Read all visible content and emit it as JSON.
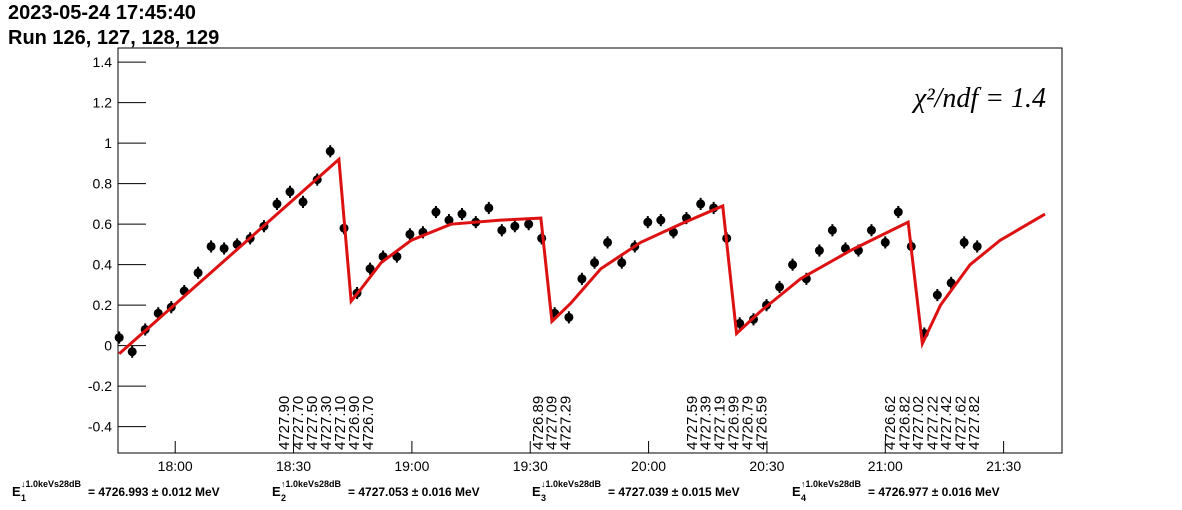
{
  "header": {
    "date": "2023-05-24 17:45:40",
    "runs": "Run 126, 127, 128, 129"
  },
  "chart_data": {
    "type": "scatter",
    "annotation": "χ²/ndf = 1.4",
    "xlim": [
      1065.5,
      1304.8
    ],
    "xticks": [
      {
        "value": 1080,
        "label": "18:00"
      },
      {
        "value": 1110,
        "label": "18:30"
      },
      {
        "value": 1140,
        "label": "19:00"
      },
      {
        "value": 1170,
        "label": "19:30"
      },
      {
        "value": 1200,
        "label": "20:00"
      },
      {
        "value": 1230,
        "label": "20:30"
      },
      {
        "value": 1260,
        "label": "21:00"
      },
      {
        "value": 1290,
        "label": "21:30"
      }
    ],
    "ylim": [
      -0.53,
      1.47
    ],
    "yticks": [
      -0.4,
      -0.2,
      0,
      0.2,
      0.4,
      0.6,
      0.8,
      1,
      1.2,
      1.4
    ],
    "series": [
      {
        "color": "#000000",
        "x": [
          1065.8,
          1069.1,
          1072.4,
          1075.7,
          1079.0,
          1082.3,
          1085.8,
          1089.1,
          1092.4,
          1095.7,
          1099.0,
          1102.5,
          1105.8,
          1109.1,
          1112.4,
          1116.0,
          1119.3,
          1122.8,
          1126.1,
          1129.4,
          1132.7,
          1136.2,
          1139.5,
          1142.8,
          1146.1,
          1149.4,
          1152.7,
          1156.2,
          1159.5,
          1162.8,
          1166.1,
          1169.6,
          1172.9,
          1176.2,
          1179.8,
          1183.1,
          1186.3,
          1189.6,
          1193.2,
          1196.5,
          1199.8,
          1203.1,
          1206.3,
          1209.6,
          1213.2,
          1216.5,
          1219.8,
          1223.1,
          1226.6,
          1229.9,
          1233.2,
          1236.5,
          1240.0,
          1243.3,
          1246.6,
          1249.9,
          1253.2,
          1256.5,
          1260.0,
          1263.3,
          1266.6,
          1269.9,
          1273.2,
          1276.7,
          1280.0,
          1283.3
        ],
        "values": [
          0.04,
          -0.03,
          0.08,
          0.16,
          0.19,
          0.27,
          0.36,
          0.49,
          0.48,
          0.5,
          0.53,
          0.59,
          0.7,
          0.76,
          0.71,
          0.82,
          0.96,
          0.58,
          0.26,
          0.38,
          0.44,
          0.44,
          0.55,
          0.56,
          0.66,
          0.62,
          0.65,
          0.61,
          0.68,
          0.57,
          0.59,
          0.6,
          0.53,
          0.16,
          0.14,
          0.33,
          0.41,
          0.51,
          0.41,
          0.49,
          0.61,
          0.62,
          0.56,
          0.63,
          0.7,
          0.68,
          0.53,
          0.11,
          0.13,
          0.2,
          0.29,
          0.4,
          0.33,
          0.47,
          0.57,
          0.48,
          0.47,
          0.57,
          0.51,
          0.66,
          0.49,
          0.06,
          0.25,
          0.31,
          0.51,
          0.49
        ],
        "errors": [
          0.03,
          0.03,
          0.03,
          0.03,
          0.03,
          0.03,
          0.03,
          0.03,
          0.03,
          0.03,
          0.03,
          0.03,
          0.03,
          0.03,
          0.03,
          0.03,
          0.03,
          0.03,
          0.03,
          0.03,
          0.03,
          0.03,
          0.03,
          0.03,
          0.03,
          0.03,
          0.03,
          0.03,
          0.03,
          0.03,
          0.03,
          0.03,
          0.03,
          0.03,
          0.03,
          0.03,
          0.03,
          0.03,
          0.03,
          0.03,
          0.03,
          0.03,
          0.03,
          0.03,
          0.03,
          0.03,
          0.03,
          0.03,
          0.03,
          0.03,
          0.03,
          0.03,
          0.03,
          0.03,
          0.03,
          0.03,
          0.03,
          0.03,
          0.03,
          0.03,
          0.03,
          0.03,
          0.03,
          0.03,
          0.03,
          0.03
        ]
      },
      {
        "color": "#dd1111",
        "x": [
          1065.8,
          1121.5,
          1124.6,
          1127.1,
          1132.2,
          1139.8,
          1149.9,
          1162.5,
          1172.7,
          1175.5,
          1180.3,
          1187.9,
          1198.0,
          1208.1,
          1218.8,
          1222.3,
          1228.4,
          1238.5,
          1251.2,
          1265.8,
          1269.4,
          1274.0,
          1281.5,
          1289.1,
          1300.5
        ],
        "values": [
          -0.04,
          0.92,
          0.22,
          0.28,
          0.41,
          0.52,
          0.6,
          0.62,
          0.63,
          0.12,
          0.21,
          0.38,
          0.51,
          0.6,
          0.69,
          0.06,
          0.17,
          0.33,
          0.47,
          0.61,
          0.01,
          0.2,
          0.4,
          0.52,
          0.65
        ]
      }
    ],
    "labels": [
      {
        "x": 1107.3,
        "text": "4727.90"
      },
      {
        "x": 1110.9,
        "text": "4727.70"
      },
      {
        "x": 1114.4,
        "text": "4727.50"
      },
      {
        "x": 1118.0,
        "text": "4727.30"
      },
      {
        "x": 1121.5,
        "text": "4727.10"
      },
      {
        "x": 1125.1,
        "text": "4726.90"
      },
      {
        "x": 1128.6,
        "text": "4726.70"
      },
      {
        "x": 1171.7,
        "text": "4726.89"
      },
      {
        "x": 1175.2,
        "text": "4727.09"
      },
      {
        "x": 1178.7,
        "text": "4727.29"
      },
      {
        "x": 1210.7,
        "text": "4727.59"
      },
      {
        "x": 1214.2,
        "text": "4727.39"
      },
      {
        "x": 1217.7,
        "text": "4727.19"
      },
      {
        "x": 1221.3,
        "text": "4726.99"
      },
      {
        "x": 1224.8,
        "text": "4726.79"
      },
      {
        "x": 1228.4,
        "text": "4726.59"
      },
      {
        "x": 1261.0,
        "text": "4726.62"
      },
      {
        "x": 1264.6,
        "text": "4726.82"
      },
      {
        "x": 1268.1,
        "text": "4727.02"
      },
      {
        "x": 1271.7,
        "text": "4727.22"
      },
      {
        "x": 1275.2,
        "text": "4727.42"
      },
      {
        "x": 1278.8,
        "text": "4727.62"
      },
      {
        "x": 1282.3,
        "text": "4727.82"
      }
    ]
  },
  "results": [
    {
      "symbol": "E",
      "sub": "1",
      "sup": "↓1.0keVs28dB",
      "text": "= 4726.993 ± 0.012 MeV"
    },
    {
      "symbol": "E",
      "sub": "2",
      "sup": "↑1.0keVs28dB",
      "text": "= 4727.053 ± 0.016 MeV"
    },
    {
      "symbol": "E",
      "sub": "3",
      "sup": "↓1.0keVs28dB",
      "text": "= 4727.039 ± 0.015 MeV"
    },
    {
      "symbol": "E",
      "sub": "4",
      "sup": "↑1.0keVs28dB",
      "text": "= 4726.977 ± 0.016 MeV"
    }
  ]
}
